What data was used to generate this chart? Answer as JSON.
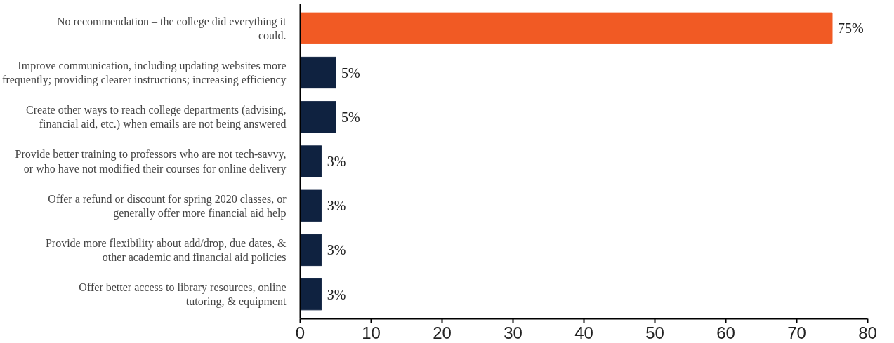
{
  "chart_data": {
    "type": "bar",
    "orientation": "horizontal",
    "categories": [
      "No recommendation – the college did everything it\ncould.",
      "Improve communication, including updating websites more\nfrequently; providing clearer instructions; increasing efficiency",
      "Create other ways to reach college departments (advising,\nfinancial aid, etc.) when emails are not being answered",
      "Provide better training to professors who are not tech-savvy,\nor who have not modified their courses for online delivery",
      "Offer a refund or discount for spring 2020 classes, or\ngenerally offer more financial aid help",
      "Provide more flexibility about add/drop, due dates, &\nother academic and financial aid policies",
      "Offer better access to library resources, online\ntutoring, & equipment"
    ],
    "values": [
      75,
      5,
      5,
      3,
      3,
      3,
      3
    ],
    "colors": [
      "#f15a24",
      "#0f2240",
      "#0f2240",
      "#0f2240",
      "#0f2240",
      "#0f2240",
      "#0f2240"
    ],
    "value_labels": [
      "75%",
      "5%",
      "5%",
      "3%",
      "3%",
      "3%",
      "3%"
    ],
    "xlim": [
      0,
      80
    ],
    "xticks": [
      0,
      10,
      20,
      30,
      40,
      50,
      60,
      70,
      80
    ],
    "grid": false
  }
}
